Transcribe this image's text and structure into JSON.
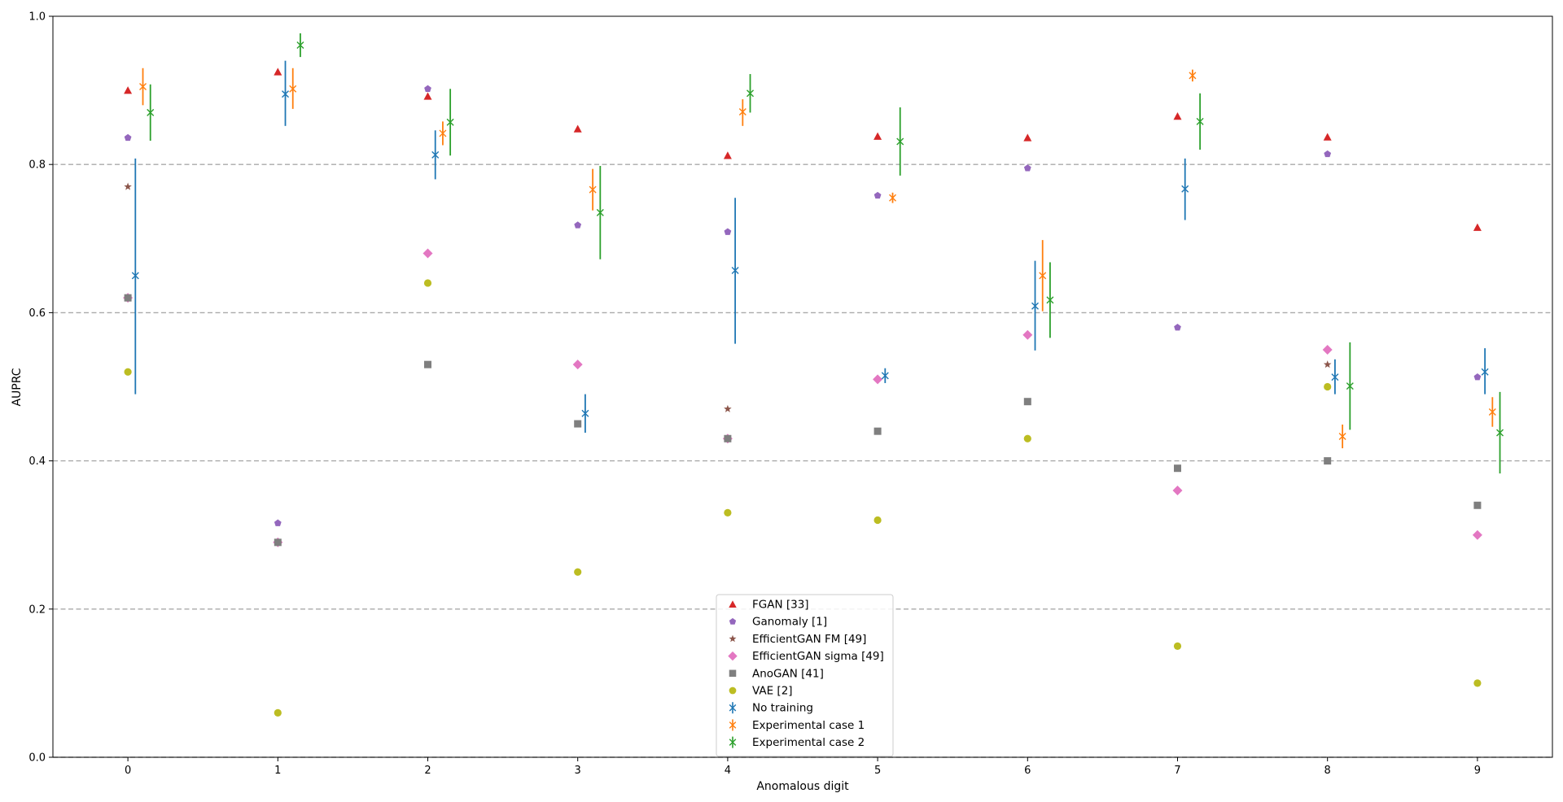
{
  "chart_data": {
    "type": "scatter",
    "title": "",
    "xlabel": "Anomalous digit",
    "ylabel": "AUPRC",
    "xlim": [
      -0.5,
      9.5
    ],
    "ylim": [
      0.0,
      1.0
    ],
    "yticks": [
      "0.0",
      "0.2",
      "0.4",
      "0.6",
      "0.8",
      "1.0"
    ],
    "categories": [
      "0",
      "1",
      "2",
      "3",
      "4",
      "5",
      "6",
      "7",
      "8",
      "9"
    ],
    "grid": "horizontal dashed at 0.2, 0.4, 0.6, 0.8",
    "legend_position": "bottom-center",
    "series": [
      {
        "name": "FGAN [33]",
        "marker": "triangle",
        "color": "#d62728",
        "offset": 0.0,
        "values": [
          0.9,
          0.925,
          0.892,
          0.848,
          0.812,
          0.838,
          0.836,
          0.865,
          0.837,
          0.715
        ]
      },
      {
        "name": "Ganomaly [1]",
        "marker": "pentagon",
        "color": "#9467bd",
        "offset": 0.0,
        "values": [
          0.836,
          0.316,
          0.902,
          0.718,
          0.709,
          0.758,
          0.795,
          0.58,
          0.814,
          0.513
        ]
      },
      {
        "name": "EfficientGAN FM [49]",
        "marker": "star",
        "color": "#8c564b",
        "offset": 0.0,
        "values": [
          0.77,
          0.29,
          null,
          null,
          0.47,
          null,
          null,
          null,
          0.53,
          null
        ]
      },
      {
        "name": "EfficientGAN sigma [49]",
        "marker": "diamond",
        "color": "#e377c2",
        "offset": 0.0,
        "values": [
          0.62,
          0.29,
          0.68,
          0.53,
          0.43,
          0.51,
          0.57,
          0.36,
          0.55,
          0.3
        ]
      },
      {
        "name": "AnoGAN [41]",
        "marker": "square",
        "color": "#7f7f7f",
        "offset": 0.0,
        "values": [
          0.62,
          0.29,
          0.53,
          0.45,
          0.43,
          0.44,
          0.48,
          0.39,
          0.4,
          0.34
        ]
      },
      {
        "name": "VAE [2]",
        "marker": "circle",
        "color": "#bcbd22",
        "offset": 0.0,
        "values": [
          0.52,
          0.06,
          0.64,
          0.25,
          0.33,
          0.32,
          0.43,
          0.15,
          0.5,
          0.1
        ]
      },
      {
        "name": "No training",
        "marker": "x",
        "color": "#1f77b4",
        "offset": 0.05,
        "values": [
          0.65,
          0.895,
          0.813,
          0.464,
          0.657,
          0.515,
          0.609,
          0.767,
          0.513,
          0.52
        ],
        "err_low": [
          0.49,
          0.852,
          0.78,
          0.438,
          0.558,
          0.505,
          0.549,
          0.725,
          0.49,
          0.49
        ],
        "err_high": [
          0.808,
          0.94,
          0.846,
          0.49,
          0.755,
          0.525,
          0.67,
          0.808,
          0.537,
          0.552
        ]
      },
      {
        "name": "Experimental case 1",
        "marker": "x",
        "color": "#ff7f0e",
        "offset": 0.1,
        "values": [
          0.905,
          0.902,
          0.842,
          0.766,
          0.871,
          0.755,
          0.65,
          0.92,
          0.433,
          0.466
        ],
        "err_low": [
          0.88,
          0.875,
          0.826,
          0.738,
          0.852,
          0.748,
          0.602,
          0.912,
          0.417,
          0.446
        ],
        "err_high": [
          0.93,
          0.93,
          0.858,
          0.794,
          0.888,
          0.762,
          0.698,
          0.928,
          0.449,
          0.486
        ]
      },
      {
        "name": "Experimental case 2",
        "marker": "x",
        "color": "#2ca02c",
        "offset": 0.15,
        "values": [
          0.87,
          0.961,
          0.857,
          0.735,
          0.896,
          0.831,
          0.617,
          0.858,
          0.501,
          0.438
        ],
        "err_low": [
          0.832,
          0.945,
          0.812,
          0.672,
          0.87,
          0.785,
          0.566,
          0.82,
          0.442,
          0.383
        ],
        "err_high": [
          0.908,
          0.977,
          0.902,
          0.798,
          0.922,
          0.877,
          0.668,
          0.896,
          0.56,
          0.493
        ]
      }
    ]
  }
}
